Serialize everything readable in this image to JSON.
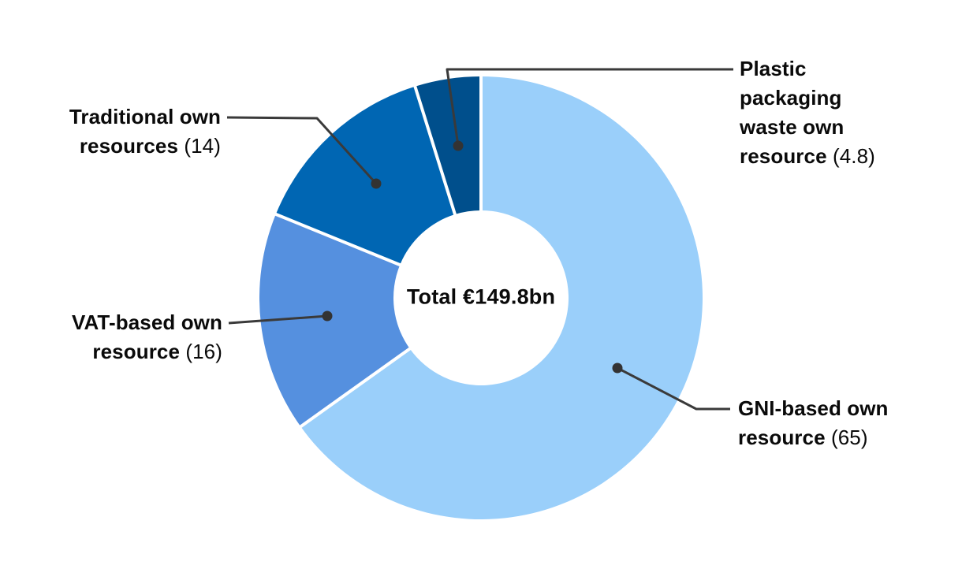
{
  "figure": {
    "center_label": "Total €149.8bn"
  },
  "labels": {
    "gni": {
      "lines": [
        "GNI-based own",
        "resource"
      ],
      "value": "(65)"
    },
    "vat": {
      "lines": [
        "VAT-based own",
        "resource"
      ],
      "value": "(16)"
    },
    "traditional": {
      "lines": [
        "Traditional own",
        "resources"
      ],
      "value": "(14)"
    },
    "plastic": {
      "lines": [
        "Plastic",
        "packaging",
        "waste own",
        "resource"
      ],
      "value": "(4.8)"
    }
  },
  "chart_data": {
    "type": "pie",
    "subtype": "donut",
    "center_label": "Total €149.8bn",
    "total_label_value": "€149.8bn",
    "categories": [
      "GNI-based own resource",
      "VAT-based own resource",
      "Traditional own resources",
      "Plastic packaging waste own resource"
    ],
    "values": [
      65,
      16,
      14,
      4.8
    ],
    "ids": [
      "gni",
      "vat",
      "traditional",
      "plastic"
    ],
    "colors": [
      "#9ACFFA",
      "#5590DF",
      "#0066B3",
      "#004F8C"
    ],
    "start_angle_deg": 0,
    "direction": "clockwise",
    "slice_gap_color": "#ffffff",
    "leader_line_color": "#3a3a3a",
    "label_text_color": "#0a0a0a",
    "legend_position": "callout-labels"
  }
}
